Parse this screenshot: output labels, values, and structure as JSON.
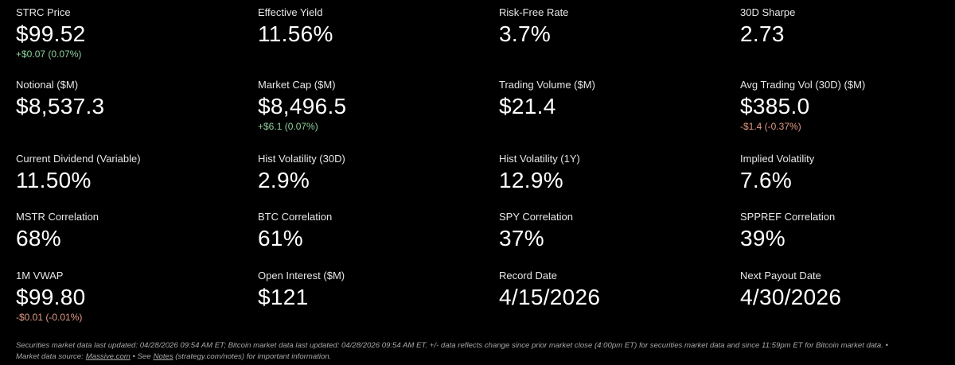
{
  "metrics": [
    {
      "label": "STRC Price",
      "value": "$99.52",
      "change": {
        "text": "+$0.07 (0.07%)",
        "color": "#8fd19e"
      }
    },
    {
      "label": "Effective Yield",
      "value": "11.56%"
    },
    {
      "label": "Risk-Free Rate",
      "value": "3.7%"
    },
    {
      "label": "30D Sharpe",
      "value": "2.73"
    },
    {
      "label": "Notional ($M)",
      "value": "$8,537.3"
    },
    {
      "label": "Market Cap ($M)",
      "value": "$8,496.5",
      "change": {
        "text": "+$6.1 (0.07%)",
        "color": "#8fd19e"
      }
    },
    {
      "label": "Trading Volume ($M)",
      "value": "$21.4"
    },
    {
      "label": "Avg Trading Vol (30D) ($M)",
      "value": "$385.0",
      "change": {
        "text": "-$1.4 (-0.37%)",
        "color": "#e39a87"
      }
    },
    {
      "label": "Current Dividend (Variable)",
      "value": "11.50%"
    },
    {
      "label": "Hist Volatility (30D)",
      "value": "2.9%"
    },
    {
      "label": "Hist Volatility (1Y)",
      "value": "12.9%"
    },
    {
      "label": "Implied Volatility",
      "value": "7.6%"
    },
    {
      "label": "MSTR Correlation",
      "value": "68%"
    },
    {
      "label": "BTC Correlation",
      "value": "61%"
    },
    {
      "label": "SPY Correlation",
      "value": "37%"
    },
    {
      "label": "SPPREF Correlation",
      "value": "39%"
    },
    {
      "label": "1M VWAP",
      "value": "$99.80",
      "change": {
        "text": "-$0.01 (-0.01%)",
        "color": "#e39a87"
      }
    },
    {
      "label": "Open Interest ($M)",
      "value": "$121"
    },
    {
      "label": "Record Date",
      "value": "4/15/2026"
    },
    {
      "label": "Next Payout Date",
      "value": "4/30/2026"
    }
  ],
  "footer": {
    "line1": "Securities market data last updated: 04/28/2026 09:54 AM ET; Bitcoin market data last updated: 04/28/2026 09:54 AM ET. +/- data reflects change since prior market close (4:00pm ET) for securities market data and since 11:59pm ET for Bitcoin market data.  •",
    "line2": {
      "source_label": "Market data source:",
      "source_link": "Massive.com",
      "see": "•  See",
      "notes_link": "Notes",
      "notes_rest": "(strategy.com/notes) for important information."
    }
  }
}
